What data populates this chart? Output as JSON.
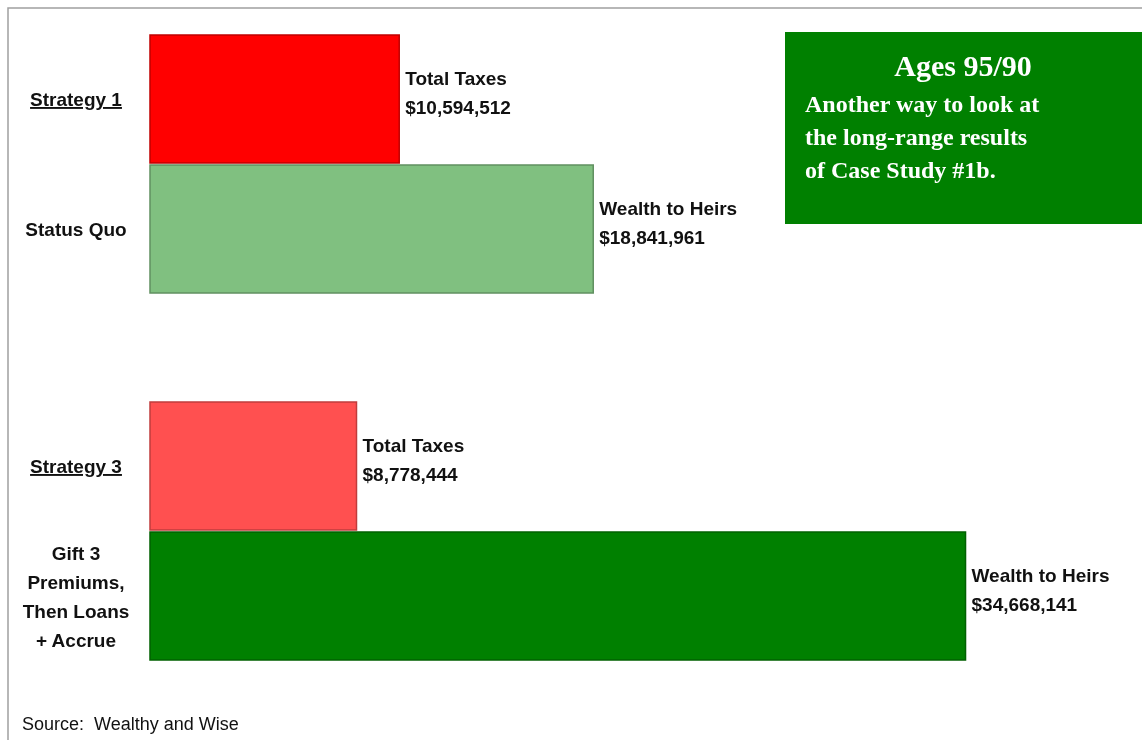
{
  "chart_data": {
    "type": "bar",
    "orientation": "horizontal",
    "title": "Ages 95/90",
    "subtitle": "Another way to look at the long-range results of Case Study #1b.",
    "categories": [
      "Strategy 1",
      "Status Quo",
      "Strategy 3",
      "Gift 3 Premiums, Then Loans + Accrue"
    ],
    "values": [
      10594512,
      18841961,
      8778444,
      34668141
    ],
    "colors": [
      "#ff0000",
      "#80c080",
      "#ff5050",
      "#008000"
    ],
    "value_labels": [
      "Total Taxes\n$10,594,512",
      "Wealth to Heirs\n$18,841,961",
      "Total Taxes\n$8,778,444",
      "Wealth to Heirs\n$34,668,141"
    ],
    "xlim": [
      0,
      42000000
    ],
    "annotations": [
      "Source:  Wealthy and Wise"
    ]
  }
}
